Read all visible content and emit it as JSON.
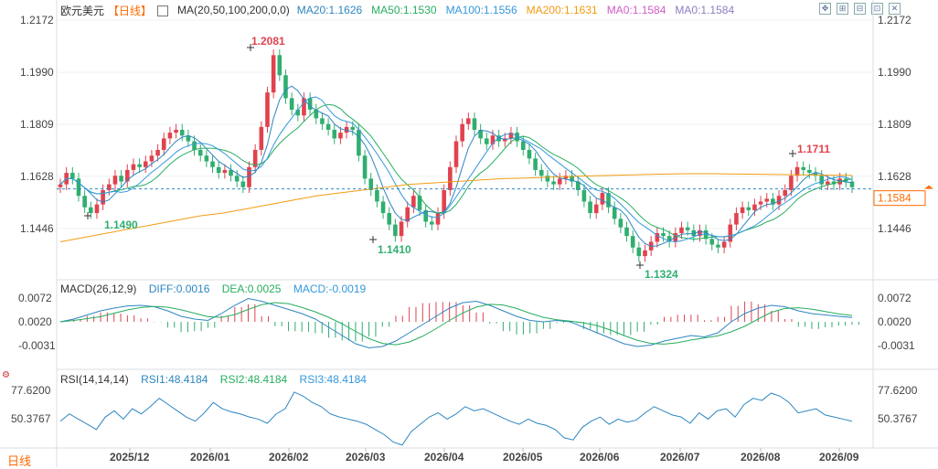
{
  "header": {
    "symbol": "欧元美元",
    "period": "【日线】",
    "ma_label": "MA(20,50,100,200,0,0)",
    "ma_values": [
      {
        "text": "MA20:1.1626",
        "color": "#2e86c1"
      },
      {
        "text": "MA50:1.1530",
        "color": "#27ae60"
      },
      {
        "text": "MA100:1.1556",
        "color": "#3498db"
      },
      {
        "text": "MA200:1.1631",
        "color": "#f39c12"
      },
      {
        "text": "MA0:1.1584",
        "color": "#d35dc4"
      },
      {
        "text": "MA0:1.1584",
        "color": "#8e7cc3"
      }
    ],
    "controls": [
      "move-icon",
      "zoom-in-icon",
      "zoom-out-icon",
      "reset-icon",
      "close-icon"
    ]
  },
  "macd": {
    "label": "MACD(26,12,9)",
    "diff": "DIFF:0.0016",
    "dea": "DEA:0.0025",
    "macd": "MACD:-0.0019",
    "ticks": [
      "0.0072",
      "0.0020",
      "-0.0031"
    ]
  },
  "rsi": {
    "label": "RSI(14,14,14)",
    "rsi1": "RSI1:48.4184",
    "rsi2": "RSI2:48.4184",
    "rsi3": "RSI3:48.4184",
    "ticks": [
      "77.6200",
      "50.3767"
    ]
  },
  "footer": {
    "period_tag": "日线"
  },
  "colors": {
    "up": "#e0424e",
    "down": "#2fae6f",
    "accent": "#ff6a00",
    "grid": "#eef0f3"
  },
  "chart_data": {
    "type": "candlestick",
    "title": "欧元美元",
    "y_ticks": [
      "1.2172",
      "1.1990",
      "1.1809",
      "1.1628",
      "1.1446"
    ],
    "ylim": [
      1.131,
      1.2172
    ],
    "current_price": "1.1584",
    "x_ticks": [
      "2025/12",
      "2026/01",
      "2026/02",
      "2026/03",
      "2026/04",
      "2026/05",
      "2026/06",
      "2026/07",
      "2026/08",
      "2026/09"
    ],
    "annotations": [
      {
        "label": "1.2081",
        "kind": "high"
      },
      {
        "label": "1.1490",
        "kind": "low"
      },
      {
        "label": "1.1410",
        "kind": "low"
      },
      {
        "label": "1.1324",
        "kind": "low"
      },
      {
        "label": "1.1711",
        "kind": "high"
      }
    ],
    "closes": [
      1.16,
      1.164,
      1.162,
      1.156,
      1.152,
      1.15,
      1.153,
      1.158,
      1.16,
      1.163,
      1.161,
      1.165,
      1.167,
      1.166,
      1.168,
      1.17,
      1.172,
      1.176,
      1.178,
      1.179,
      1.177,
      1.175,
      1.172,
      1.17,
      1.168,
      1.166,
      1.164,
      1.165,
      1.163,
      1.161,
      1.159,
      1.166,
      1.172,
      1.18,
      1.192,
      1.205,
      1.198,
      1.19,
      1.186,
      1.184,
      1.19,
      1.186,
      1.183,
      1.181,
      1.179,
      1.176,
      1.178,
      1.18,
      1.179,
      1.17,
      1.162,
      1.158,
      1.154,
      1.15,
      1.146,
      1.142,
      1.147,
      1.152,
      1.156,
      1.151,
      1.147,
      1.146,
      1.15,
      1.158,
      1.166,
      1.175,
      1.181,
      1.183,
      1.179,
      1.176,
      1.174,
      1.177,
      1.175,
      1.176,
      1.178,
      1.175,
      1.172,
      1.169,
      1.165,
      1.163,
      1.161,
      1.16,
      1.162,
      1.163,
      1.161,
      1.158,
      1.154,
      1.15,
      1.153,
      1.157,
      1.152,
      1.148,
      1.145,
      1.142,
      1.138,
      1.135,
      1.137,
      1.14,
      1.143,
      1.142,
      1.14,
      1.143,
      1.145,
      1.144,
      1.142,
      1.144,
      1.141,
      1.139,
      1.138,
      1.14,
      1.146,
      1.15,
      1.152,
      1.151,
      1.153,
      1.154,
      1.155,
      1.153,
      1.156,
      1.158,
      1.163,
      1.166,
      1.165,
      1.164,
      1.163,
      1.16,
      1.161,
      1.16,
      1.162,
      1.161,
      1.159
    ],
    "ma200": [
      1.14,
      1.1415,
      1.143,
      1.1445,
      1.146,
      1.1475,
      1.149,
      1.15,
      1.1515,
      1.153,
      1.1545,
      1.156,
      1.157,
      1.158,
      1.159,
      1.16,
      1.1605,
      1.161,
      1.1615,
      1.162,
      1.1622,
      1.1625,
      1.1628,
      1.163,
      1.1632,
      1.1634,
      1.1636,
      1.1637,
      1.1637,
      1.1636,
      1.1635,
      1.1634,
      1.1633,
      1.1632,
      1.1631
    ],
    "rsi1": [
      48,
      55,
      50,
      45,
      40,
      52,
      58,
      50,
      60,
      55,
      62,
      70,
      64,
      58,
      52,
      48,
      56,
      66,
      60,
      57,
      55,
      52,
      50,
      46,
      55,
      60,
      76,
      72,
      66,
      62,
      55,
      52,
      50,
      48,
      45,
      40,
      35,
      28,
      25,
      38,
      45,
      52,
      56,
      50,
      55,
      62,
      58,
      60,
      56,
      52,
      48,
      45,
      50,
      46,
      44,
      40,
      32,
      30,
      42,
      48,
      52,
      45,
      50,
      47,
      49,
      56,
      62,
      58,
      54,
      52,
      46,
      56,
      50,
      58,
      60,
      52,
      64,
      70,
      68,
      75,
      72,
      66,
      56,
      58,
      60,
      54,
      52,
      50,
      48
    ],
    "diff": [
      0.0,
      0.001,
      0.0025,
      0.004,
      0.005,
      0.0058,
      0.006,
      0.0055,
      0.004,
      0.002,
      0.001,
      0.0005,
      0.003,
      0.006,
      0.0085,
      0.0075,
      0.006,
      0.0045,
      0.003,
      0.001,
      -0.002,
      -0.005,
      -0.008,
      -0.0095,
      -0.009,
      -0.007,
      -0.004,
      -0.001,
      0.002,
      0.005,
      0.007,
      0.0075,
      0.006,
      0.004,
      0.002,
      0.0005,
      0.0,
      0.0005,
      0.0,
      -0.002,
      -0.004,
      -0.006,
      -0.008,
      -0.009,
      -0.0085,
      -0.007,
      -0.006,
      -0.005,
      -0.0055,
      -0.004,
      0.0,
      0.003,
      0.005,
      0.006,
      0.0055,
      0.004,
      0.003,
      0.0025,
      0.002,
      0.0016
    ]
  }
}
